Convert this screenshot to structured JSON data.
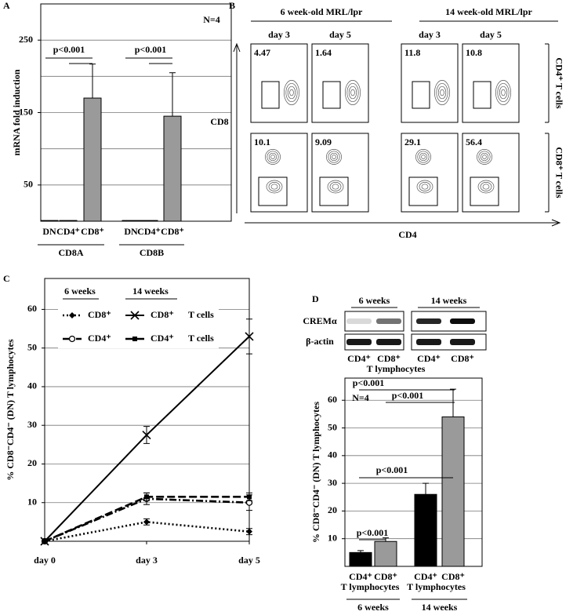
{
  "chart_data": [
    {
      "type": "bar",
      "panel": "A",
      "ylabel": "mRNA fold induction",
      "categories": [
        "DN",
        "CD4⁺",
        "CD8⁺",
        "DN",
        "CD4⁺",
        "CD8⁺"
      ],
      "values": [
        1,
        1,
        170,
        1,
        1,
        145
      ],
      "errors": [
        null,
        null,
        47,
        null,
        null,
        60
      ],
      "colors": [
        "#9a9a9a",
        "#9a9a9a",
        "#9a9a9a",
        "#9a9a9a",
        "#9a9a9a",
        "#9a9a9a"
      ],
      "groups": [
        "CD8A",
        "CD8B"
      ],
      "ylim": [
        0,
        300
      ],
      "yticks": [
        50,
        150,
        250
      ],
      "grid": true,
      "grid_lines": [
        50,
        100,
        150,
        200,
        250
      ],
      "annotations": [
        "N=4",
        "p<0.001",
        "p<0.001"
      ]
    },
    {
      "type": "line",
      "panel": "C",
      "ylabel": "% CD8⁻CD4⁻ (DN) T lymphocytes",
      "categories": [
        "day 0",
        "day 3",
        "day 5"
      ],
      "legend_groups": [
        "6 weeks",
        "14 weeks"
      ],
      "legend_suffix": [
        "T cells",
        "T cells"
      ],
      "series": [
        {
          "name": "CD8⁺",
          "color": "#000000",
          "dash": "dotted",
          "marker": "diamond",
          "values": [
            0,
            5,
            2.5
          ],
          "errors": [
            null,
            0.8,
            0.8
          ]
        },
        {
          "name": "CD8⁺",
          "color": "#000000",
          "dash": "solid",
          "marker": "x",
          "values": [
            0,
            27.5,
            53
          ],
          "errors": [
            null,
            2.2,
            4.5
          ]
        },
        {
          "name": "CD4⁺",
          "color": "#000000",
          "dash": "dashdot",
          "marker": "circle",
          "values": [
            0,
            11,
            10
          ],
          "errors": [
            null,
            1.5,
            2
          ]
        },
        {
          "name": "CD4⁺",
          "color": "#000000",
          "dash": "dashed",
          "marker": "square",
          "values": [
            0,
            11.5,
            11.5
          ],
          "errors": [
            null,
            1,
            1
          ]
        }
      ],
      "ylim": [
        0,
        68
      ],
      "yticks": [
        10,
        20,
        30,
        40,
        50,
        60
      ],
      "grid": true
    },
    {
      "type": "bar",
      "panel": "D",
      "ylabel": "% CD8⁻CD4⁻ (DN) T lymphocytes",
      "categories": [
        "CD4⁺",
        "CD8⁺",
        "CD4⁺",
        "CD8⁺"
      ],
      "category_sublabels": [
        "T lymphocytes",
        "T lymphocytes"
      ],
      "values": [
        5,
        9,
        26,
        54
      ],
      "errors": [
        0.7,
        1.3,
        4,
        10
      ],
      "colors": [
        "#000000",
        "#9a9a9a",
        "#000000",
        "#9a9a9a"
      ],
      "groups": [
        "6 weeks",
        "14 weeks"
      ],
      "ylim": [
        0,
        68
      ],
      "yticks": [
        10,
        20,
        30,
        40,
        50,
        60
      ],
      "grid": true,
      "grid_lines": [
        10,
        20,
        30,
        40,
        50,
        60
      ],
      "annotations": [
        "N=4",
        "p<0.001",
        "p<0.001",
        "p<0.001",
        "p<0.001"
      ]
    }
  ],
  "flow": {
    "panel": "B",
    "column_groups": [
      "6 week-old MRL/lpr",
      "14 week-old MRL/lpr"
    ],
    "columns": [
      "day 3",
      "day 5",
      "day 3",
      "day 5"
    ],
    "row_labels": [
      "CD4⁺ T cells",
      "CD8⁺ T cells"
    ],
    "xlabel": "CD4",
    "ylabel": "CD8",
    "percentages": [
      [
        4.47,
        1.64,
        11.8,
        10.8
      ],
      [
        10.1,
        9.09,
        29.1,
        56.4
      ]
    ]
  },
  "blot": {
    "groups": [
      "6 weeks",
      "14 weeks"
    ],
    "rows": [
      "CREMα",
      "β-actin"
    ],
    "lanes": [
      "CD4⁺",
      "CD8⁺",
      "CD4⁺",
      "CD8⁺"
    ],
    "lane_sublabel": "T lymphocytes"
  }
}
